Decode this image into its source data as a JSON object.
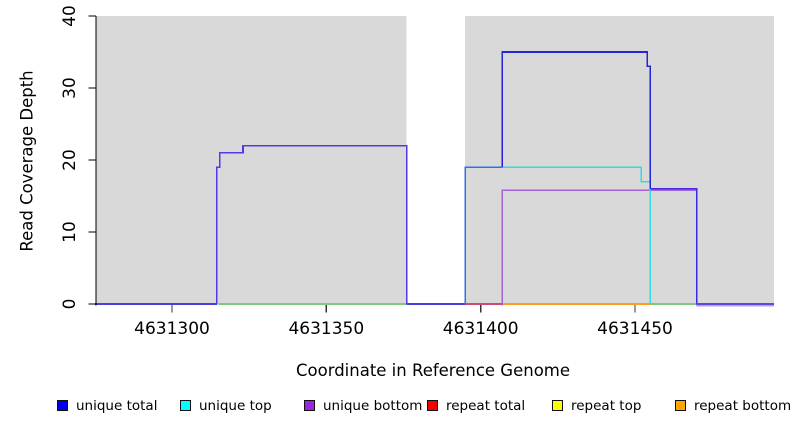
{
  "y_axis": {
    "title": "Read Coverage Depth",
    "ticks": [
      0,
      10,
      20,
      30,
      40
    ]
  },
  "x_axis": {
    "title": "Coordinate in Reference Genome",
    "ticks": [
      4631300,
      4631350,
      4631400,
      4631450
    ]
  },
  "legend": {
    "items": [
      {
        "label": "unique total",
        "color": "#0000ee"
      },
      {
        "label": "unique top",
        "color": "#00ffff"
      },
      {
        "label": "unique bottom",
        "color": "#9d24e0"
      },
      {
        "label": "repeat total",
        "color": "#f40000"
      },
      {
        "label": "repeat top",
        "color": "#ffff00"
      },
      {
        "label": "repeat bottom",
        "color": "#ffa500"
      }
    ]
  },
  "chart_data": {
    "type": "line",
    "title": "",
    "xlabel": "Coordinate in Reference Genome",
    "ylabel": "Read Coverage Depth",
    "xlim": [
      4631275,
      4631495
    ],
    "ylim": [
      0,
      40
    ],
    "grid": false,
    "legend_position": "bottom",
    "plot_background_color": "#d9d9d9",
    "coverage_gap_x": [
      4631376,
      4631395
    ],
    "series": [
      {
        "name": "unique total",
        "color": "#0000ee",
        "points": [
          [
            4631275,
            0
          ],
          [
            4631314.5,
            0
          ],
          [
            4631314.5,
            19
          ],
          [
            4631315.5,
            19
          ],
          [
            4631315.5,
            21
          ],
          [
            4631323,
            21
          ],
          [
            4631323,
            22
          ],
          [
            4631376,
            22
          ],
          [
            4631376,
            0
          ],
          [
            4631395,
            0
          ],
          [
            4631395,
            19
          ],
          [
            4631407,
            19
          ],
          [
            4631407,
            35
          ],
          [
            4631454,
            35
          ],
          [
            4631454,
            33
          ],
          [
            4631455,
            33
          ],
          [
            4631455,
            16
          ],
          [
            4631470,
            16
          ],
          [
            4631470,
            0
          ],
          [
            4631495,
            0
          ]
        ]
      },
      {
        "name": "unique top",
        "color": "#00ffff",
        "points": [
          [
            4631395,
            0
          ],
          [
            4631395,
            19
          ],
          [
            4631452,
            19
          ],
          [
            4631452,
            17
          ],
          [
            4631455,
            17
          ],
          [
            4631455,
            0
          ]
        ]
      },
      {
        "name": "unique bottom",
        "color": "#9d24e0",
        "points": [
          [
            4631407,
            0
          ],
          [
            4631407,
            16
          ],
          [
            4631470,
            16
          ],
          [
            4631470,
            0
          ]
        ]
      },
      {
        "name": "repeat total",
        "color": "#f40000",
        "points": [
          [
            4631395,
            0
          ],
          [
            4631407,
            0
          ]
        ]
      },
      {
        "name": "repeat top",
        "color": "#ffff00",
        "points": [
          [
            4631395,
            0
          ],
          [
            4631455,
            0
          ]
        ]
      },
      {
        "name": "repeat bottom",
        "color": "#ffa500",
        "points": [
          [
            4631407,
            0
          ],
          [
            4631455,
            0
          ]
        ]
      }
    ],
    "render_segments": [
      {
        "id": "zero-overlap-green-1",
        "color": "#7ec97e",
        "dy": 0,
        "points": [
          [
            4631315,
            0
          ],
          [
            4631376,
            0
          ]
        ]
      },
      {
        "id": "zero-overlap-green-2",
        "color": "#7ec97e",
        "dy": 0,
        "points": [
          [
            4631455,
            0
          ],
          [
            4631470,
            0
          ]
        ]
      },
      {
        "id": "zero-overlap-rose",
        "color": "#cf4a70",
        "dy": 0,
        "points": [
          [
            4631395,
            0
          ],
          [
            4631407,
            0
          ]
        ]
      },
      {
        "id": "zero-overlap-orange",
        "color": "#ff9d1c",
        "dy": 0,
        "points": [
          [
            4631407,
            0
          ],
          [
            4631455,
            0
          ]
        ]
      },
      {
        "id": "zero-overlap-lavender",
        "color": "#b9a0e8",
        "dy": 1.5,
        "points": [
          [
            4631470,
            0
          ],
          [
            4631495,
            0
          ]
        ]
      },
      {
        "id": "unique-bottom-line",
        "color": "#a564d4",
        "dy": 1.4,
        "points": [
          [
            4631407,
            0
          ],
          [
            4631407,
            16
          ],
          [
            4631470,
            16
          ],
          [
            4631470,
            0
          ]
        ]
      },
      {
        "id": "unique-top-line",
        "color": "#35d9e3",
        "dy": 0,
        "points": [
          [
            4631395,
            0
          ],
          [
            4631395,
            19
          ],
          [
            4631452,
            19
          ],
          [
            4631452,
            17
          ],
          [
            4631455,
            17
          ],
          [
            4631455,
            0
          ]
        ]
      },
      {
        "id": "unique-total-zero-left",
        "color": "#4a3ce0",
        "dy": 0,
        "points": [
          [
            4631275,
            0
          ],
          [
            4631314.5,
            0
          ]
        ]
      },
      {
        "id": "unique-total-block1",
        "color": "#5a36e8",
        "dy": 0,
        "points": [
          [
            4631314.5,
            0
          ],
          [
            4631314.5,
            19
          ],
          [
            4631315.5,
            19
          ],
          [
            4631315.5,
            21
          ],
          [
            4631323,
            21
          ],
          [
            4631323,
            22
          ],
          [
            4631376,
            22
          ],
          [
            4631376,
            0
          ]
        ]
      },
      {
        "id": "unique-total-gap-zero",
        "color": "#4a3ce0",
        "dy": 0,
        "points": [
          [
            4631376,
            0
          ],
          [
            4631395,
            0
          ]
        ]
      },
      {
        "id": "unique-total-rise19",
        "color": "#2b72f2",
        "dy": 0,
        "points": [
          [
            4631395,
            0
          ],
          [
            4631395,
            19
          ],
          [
            4631407,
            19
          ]
        ]
      },
      {
        "id": "unique-total-block35",
        "color": "#2424d8",
        "dy": 0,
        "points": [
          [
            4631407,
            19
          ],
          [
            4631407,
            35
          ],
          [
            4631454,
            35
          ],
          [
            4631454,
            33
          ],
          [
            4631455,
            33
          ],
          [
            4631455,
            16
          ]
        ]
      },
      {
        "id": "unique-total-block16",
        "color": "#3c2be0",
        "dy": 0,
        "points": [
          [
            4631455,
            16
          ],
          [
            4631470,
            16
          ],
          [
            4631470,
            0
          ]
        ]
      },
      {
        "id": "unique-total-zero-right",
        "color": "#5d48e6",
        "dy": 0,
        "points": [
          [
            4631470,
            0
          ],
          [
            4631495,
            0
          ]
        ]
      }
    ]
  }
}
